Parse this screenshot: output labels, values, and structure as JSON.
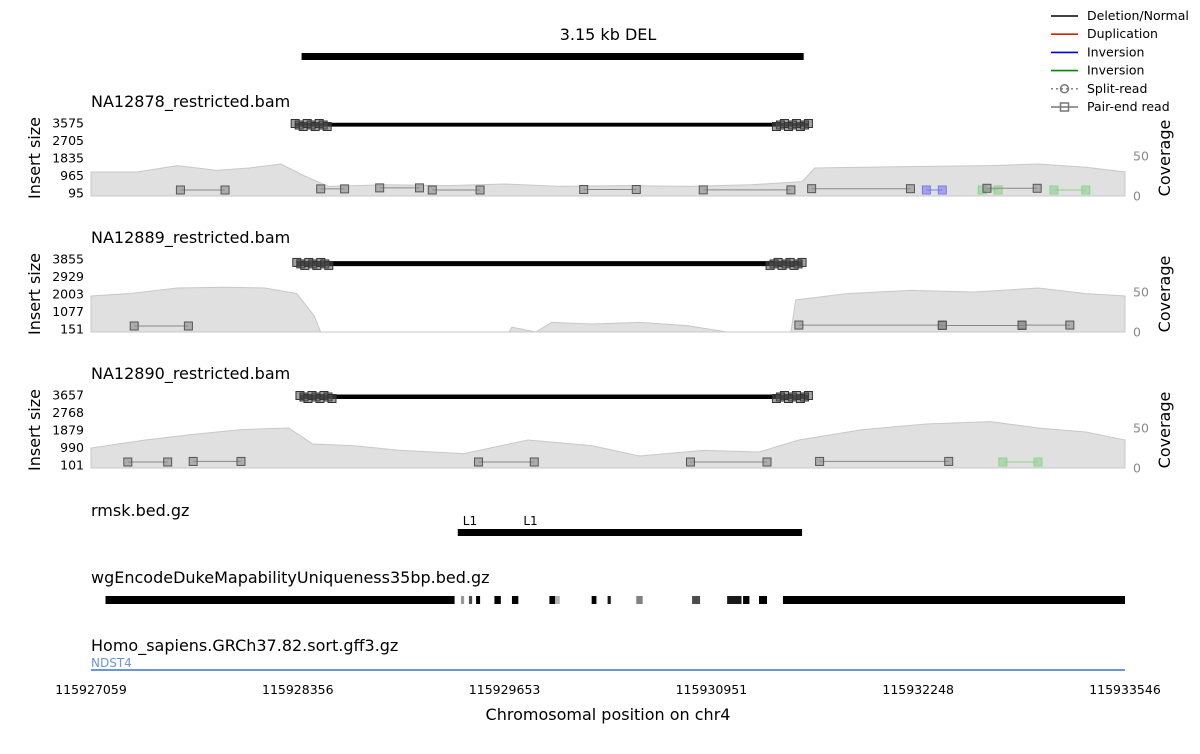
{
  "colors": {
    "deletion": "#000000",
    "duplication": "#cc2200",
    "inversion_blue": "#0000cc",
    "inversion_green": "#008800",
    "split_read": "#777777",
    "pair_end": "#777777",
    "coverage_fill": "#e0e0e0",
    "coverage_line": "#c8c8c8",
    "gene": "#6a97d8",
    "axis_grey": "#8a8a8a"
  },
  "legend": [
    {
      "label": "Deletion/Normal",
      "color": "#000000",
      "marker": "none"
    },
    {
      "label": "Duplication",
      "color": "#cc2200",
      "marker": "none"
    },
    {
      "label": "Inversion",
      "color": "#0000cc",
      "marker": "none"
    },
    {
      "label": "Inversion",
      "color": "#008800",
      "marker": "none"
    },
    {
      "label": "Split-read",
      "color": "#777777",
      "marker": "circle"
    },
    {
      "label": "Pair-end read",
      "color": "#777777",
      "marker": "square"
    }
  ],
  "chart_data": {
    "type": "genomic-tracks",
    "variant": {
      "label": "3.15 kb DEL",
      "start": 115928380,
      "end": 115931530
    },
    "xrange": [
      115927059,
      115933546
    ],
    "xticks": [
      "115927059",
      "115928356",
      "115929653",
      "115930951",
      "115932248",
      "115933546"
    ],
    "xlabel": "Chromosomal position on chr4",
    "samples": [
      {
        "name": "NA12878_restricted.bam",
        "yticks": [
          "3575",
          "2705",
          "1835",
          "965",
          "95"
        ],
        "ymin": 95,
        "ymax": 3575,
        "coverage_ticks": [
          "50",
          "0"
        ],
        "cov_max": 80,
        "ylabel": "Insert size",
        "y2label": "Coverage",
        "coverage": [
          [
            115927059,
            30
          ],
          [
            115927350,
            30
          ],
          [
            115927600,
            38
          ],
          [
            115927850,
            32
          ],
          [
            115928050,
            35
          ],
          [
            115928250,
            40
          ],
          [
            115928400,
            25
          ],
          [
            115928550,
            12
          ],
          [
            115928900,
            14
          ],
          [
            115929300,
            13
          ],
          [
            115929650,
            15
          ],
          [
            115930000,
            12
          ],
          [
            115930400,
            13
          ],
          [
            115930800,
            12
          ],
          [
            115931200,
            14
          ],
          [
            115931520,
            18
          ],
          [
            115931600,
            35
          ],
          [
            115931900,
            36
          ],
          [
            115932300,
            37
          ],
          [
            115932700,
            38
          ],
          [
            115933000,
            40
          ],
          [
            115933300,
            36
          ],
          [
            115933546,
            30
          ]
        ],
        "split_reads": [
          {
            "start": 115928340,
            "end": 115931560,
            "insert": 3575,
            "count": 6,
            "color": "#000000"
          }
        ],
        "pair_reads": [
          {
            "start": 115927620,
            "end": 115927900,
            "insert": 95,
            "color": "#777777"
          },
          {
            "start": 115928500,
            "end": 115928650,
            "insert": 150,
            "color": "#777777"
          },
          {
            "start": 115928870,
            "end": 115929120,
            "insert": 200,
            "color": "#777777"
          },
          {
            "start": 115929200,
            "end": 115929500,
            "insert": 95,
            "color": "#777777"
          },
          {
            "start": 115930150,
            "end": 115930480,
            "insert": 120,
            "color": "#777777"
          },
          {
            "start": 115930900,
            "end": 115931450,
            "insert": 100,
            "color": "#777777"
          },
          {
            "start": 115931580,
            "end": 115932200,
            "insert": 160,
            "color": "#777777"
          },
          {
            "start": 115932300,
            "end": 115932400,
            "insert": 95,
            "color": "#0000cc"
          },
          {
            "start": 115932650,
            "end": 115932750,
            "insert": 95,
            "color": "#008800"
          },
          {
            "start": 115932680,
            "end": 115932995,
            "insert": 180,
            "color": "#777777"
          },
          {
            "start": 115933100,
            "end": 115933300,
            "insert": 95,
            "color": "#008800"
          }
        ]
      },
      {
        "name": "NA12889_restricted.bam",
        "yticks": [
          "3855",
          "2929",
          "2003",
          "1077",
          "151"
        ],
        "ymin": 151,
        "ymax": 3855,
        "coverage_ticks": [
          "50",
          "0"
        ],
        "cov_max": 80,
        "ylabel": "Insert size",
        "y2label": "Coverage",
        "coverage": [
          [
            115927059,
            45
          ],
          [
            115927300,
            48
          ],
          [
            115927600,
            55
          ],
          [
            115927900,
            56
          ],
          [
            115928150,
            55
          ],
          [
            115928350,
            48
          ],
          [
            115928460,
            20
          ],
          [
            115928500,
            0
          ],
          [
            115929680,
            0
          ],
          [
            115929700,
            6
          ],
          [
            115929850,
            0
          ],
          [
            115929950,
            12
          ],
          [
            115930200,
            10
          ],
          [
            115930500,
            12
          ],
          [
            115930800,
            8
          ],
          [
            115931050,
            0
          ],
          [
            115931450,
            0
          ],
          [
            115931480,
            40
          ],
          [
            115931800,
            48
          ],
          [
            115932200,
            52
          ],
          [
            115932600,
            50
          ],
          [
            115933000,
            55
          ],
          [
            115933300,
            48
          ],
          [
            115933546,
            45
          ]
        ],
        "split_reads": [
          {
            "start": 115928350,
            "end": 115931520,
            "insert": 3700,
            "count": 8,
            "color": "#000000"
          }
        ],
        "pair_reads": [
          {
            "start": 115927330,
            "end": 115927670,
            "insert": 151,
            "color": "#777777"
          },
          {
            "start": 115931500,
            "end": 115932400,
            "insert": 200,
            "color": "#777777"
          },
          {
            "start": 115932400,
            "end": 115932900,
            "insert": 180,
            "color": "#777777"
          },
          {
            "start": 115932900,
            "end": 115933200,
            "insert": 200,
            "color": "#777777"
          }
        ]
      },
      {
        "name": "NA12890_restricted.bam",
        "yticks": [
          "3657",
          "2768",
          "1879",
          "990",
          "101"
        ],
        "ymin": 101,
        "ymax": 3657,
        "coverage_ticks": [
          "50",
          "0"
        ],
        "cov_max": 80,
        "ylabel": "Insert size",
        "y2label": "Coverage",
        "coverage": [
          [
            115927059,
            25
          ],
          [
            115927400,
            35
          ],
          [
            115927700,
            42
          ],
          [
            115928000,
            48
          ],
          [
            115928300,
            50
          ],
          [
            115928450,
            30
          ],
          [
            115928700,
            28
          ],
          [
            115929000,
            22
          ],
          [
            115929400,
            18
          ],
          [
            115929800,
            35
          ],
          [
            115930200,
            28
          ],
          [
            115930500,
            15
          ],
          [
            115930900,
            22
          ],
          [
            115931250,
            20
          ],
          [
            115931500,
            35
          ],
          [
            115931900,
            48
          ],
          [
            115932300,
            55
          ],
          [
            115932700,
            58
          ],
          [
            115933000,
            50
          ],
          [
            115933300,
            45
          ],
          [
            115933546,
            35
          ]
        ],
        "split_reads": [
          {
            "start": 115928370,
            "end": 115931560,
            "insert": 3657,
            "count": 7,
            "color": "#000000"
          }
        ],
        "pair_reads": [
          {
            "start": 115927290,
            "end": 115927540,
            "insert": 101,
            "color": "#777777"
          },
          {
            "start": 115927700,
            "end": 115928000,
            "insert": 130,
            "color": "#777777"
          },
          {
            "start": 115929490,
            "end": 115929840,
            "insert": 101,
            "color": "#777777"
          },
          {
            "start": 115930820,
            "end": 115931300,
            "insert": 101,
            "color": "#777777"
          },
          {
            "start": 115931630,
            "end": 115932440,
            "insert": 130,
            "color": "#777777"
          },
          {
            "start": 115932780,
            "end": 115933000,
            "insert": 101,
            "color": "#008800"
          }
        ]
      }
    ],
    "annotations": {
      "name": "rmsk.bed.gz",
      "bar": {
        "start": 115929360,
        "end": 115931520
      },
      "labels": [
        {
          "text": "L1",
          "pos": 115929360
        },
        {
          "text": "L1",
          "pos": 115929740
        }
      ]
    },
    "mapability": {
      "name": "wgEncodeDukeMapabilityUniqueness35bp.bed.gz",
      "segments": [
        {
          "start": 115927150,
          "end": 115929340,
          "shade": 1.0
        },
        {
          "start": 115929380,
          "end": 115929400,
          "shade": 0.4
        },
        {
          "start": 115929430,
          "end": 115929450,
          "shade": 0.7
        },
        {
          "start": 115929475,
          "end": 115929500,
          "shade": 1.0
        },
        {
          "start": 115929590,
          "end": 115929630,
          "shade": 1.0
        },
        {
          "start": 115929700,
          "end": 115929740,
          "shade": 1.0
        },
        {
          "start": 115929935,
          "end": 115929970,
          "shade": 1.0
        },
        {
          "start": 115929970,
          "end": 115930000,
          "shade": 0.3
        },
        {
          "start": 115930200,
          "end": 115930230,
          "shade": 1.0
        },
        {
          "start": 115930300,
          "end": 115930320,
          "shade": 0.9
        },
        {
          "start": 115930480,
          "end": 115930520,
          "shade": 0.5
        },
        {
          "start": 115930830,
          "end": 115930880,
          "shade": 0.7
        },
        {
          "start": 115931050,
          "end": 115931140,
          "shade": 0.9
        },
        {
          "start": 115931150,
          "end": 115931190,
          "shade": 1.0
        },
        {
          "start": 115931250,
          "end": 115931300,
          "shade": 1.0
        },
        {
          "start": 115931400,
          "end": 115933546,
          "shade": 1.0
        }
      ]
    },
    "genes": {
      "name": "Homo_sapiens.GRCh37.82.sort.gff3.gz",
      "items": [
        {
          "label": "NDST4",
          "start": 115927059,
          "end": 115933546
        }
      ]
    }
  }
}
